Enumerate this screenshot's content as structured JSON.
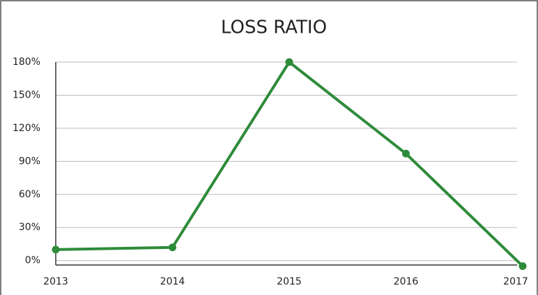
{
  "chart_data": {
    "type": "line",
    "title": "LOSS RATIO",
    "categories": [
      "2013",
      "2014",
      "2015",
      "2016",
      "2017"
    ],
    "series": [
      {
        "name": "Loss ratio",
        "color": "#2e8b3a",
        "values": [
          10,
          12,
          180,
          97,
          -5
        ]
      }
    ],
    "ylim": [
      -4,
      180
    ],
    "yticks": [
      {
        "value": 0,
        "label": "0%"
      },
      {
        "value": 30,
        "label": "30%"
      },
      {
        "value": 60,
        "label": "60%"
      },
      {
        "value": 90,
        "label": "90%"
      },
      {
        "value": 120,
        "label": "120%"
      },
      {
        "value": 150,
        "label": "150%"
      },
      {
        "value": 180,
        "label": "180%"
      }
    ],
    "grid": true
  }
}
